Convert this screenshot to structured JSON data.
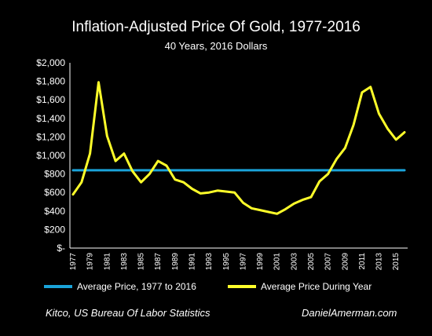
{
  "chart_data": {
    "type": "line",
    "title": "Inflation-Adjusted Price Of Gold, 1977-2016",
    "subtitle": "40 Years, 2016 Dollars",
    "xlabel": "",
    "ylabel": "",
    "ylim": [
      0,
      2000
    ],
    "y_ticks": [
      "$-",
      "$200",
      "$400",
      "$600",
      "$800",
      "$1,000",
      "$1,200",
      "$1,400",
      "$1,600",
      "$1,800",
      "$2,000"
    ],
    "x_tick_labels": [
      "1977",
      "1979",
      "1981",
      "1983",
      "1985",
      "1987",
      "1989",
      "1991",
      "1993",
      "1995",
      "1997",
      "1999",
      "2001",
      "2003",
      "2005",
      "2007",
      "2009",
      "2011",
      "2013",
      "2015"
    ],
    "grid": false,
    "legend_placement": "bottom",
    "x": [
      1977,
      1978,
      1979,
      1980,
      1981,
      1982,
      1983,
      1984,
      1985,
      1986,
      1987,
      1988,
      1989,
      1990,
      1991,
      1992,
      1993,
      1994,
      1995,
      1996,
      1997,
      1998,
      1999,
      2000,
      2001,
      2002,
      2003,
      2004,
      2005,
      2006,
      2007,
      2008,
      2009,
      2010,
      2011,
      2012,
      2013,
      2014,
      2015,
      2016
    ],
    "series": [
      {
        "name": "Average Price, 1977 to 2016",
        "color": "#1aa3d9",
        "values": [
          840,
          840,
          840,
          840,
          840,
          840,
          840,
          840,
          840,
          840,
          840,
          840,
          840,
          840,
          840,
          840,
          840,
          840,
          840,
          840,
          840,
          840,
          840,
          840,
          840,
          840,
          840,
          840,
          840,
          840,
          840,
          840,
          840,
          840,
          840,
          840,
          840,
          840,
          840,
          840
        ]
      },
      {
        "name": "Average Price During Year",
        "color": "#ffff2a",
        "values": [
          580,
          710,
          1020,
          1790,
          1210,
          940,
          1020,
          830,
          710,
          800,
          940,
          890,
          740,
          710,
          640,
          590,
          600,
          620,
          610,
          600,
          490,
          430,
          410,
          390,
          370,
          420,
          480,
          520,
          550,
          720,
          800,
          960,
          1080,
          1330,
          1680,
          1740,
          1450,
          1290,
          1170,
          1250
        ]
      }
    ]
  },
  "footer": {
    "source": "Kitco, US Bureau Of Labor Statistics",
    "site": "DanielAmerman.com"
  }
}
